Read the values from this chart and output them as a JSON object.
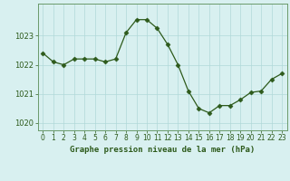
{
  "x": [
    0,
    1,
    2,
    3,
    4,
    5,
    6,
    7,
    8,
    9,
    10,
    11,
    12,
    13,
    14,
    15,
    16,
    17,
    18,
    19,
    20,
    21,
    22,
    23
  ],
  "y": [
    1022.4,
    1022.1,
    1022.0,
    1022.2,
    1022.2,
    1022.2,
    1022.1,
    1022.2,
    1023.1,
    1023.55,
    1023.55,
    1023.25,
    1022.7,
    1022.0,
    1021.1,
    1020.5,
    1020.35,
    1020.6,
    1020.6,
    1020.8,
    1021.05,
    1021.1,
    1021.5,
    1021.7
  ],
  "line_color": "#2d5a1b",
  "marker": "D",
  "marker_size": 2.5,
  "bg_color": "#d8f0f0",
  "grid_color": "#b0d8d8",
  "xlabel": "Graphe pression niveau de la mer (hPa)",
  "xlabel_color": "#2d5a1b",
  "tick_color": "#2d5a1b",
  "spine_color": "#6a9a6a",
  "ylim": [
    1019.75,
    1024.1
  ],
  "yticks": [
    1020,
    1021,
    1022,
    1023
  ],
  "xlim": [
    -0.5,
    23.5
  ],
  "xticks": [
    0,
    1,
    2,
    3,
    4,
    5,
    6,
    7,
    8,
    9,
    10,
    11,
    12,
    13,
    14,
    15,
    16,
    17,
    18,
    19,
    20,
    21,
    22,
    23
  ]
}
